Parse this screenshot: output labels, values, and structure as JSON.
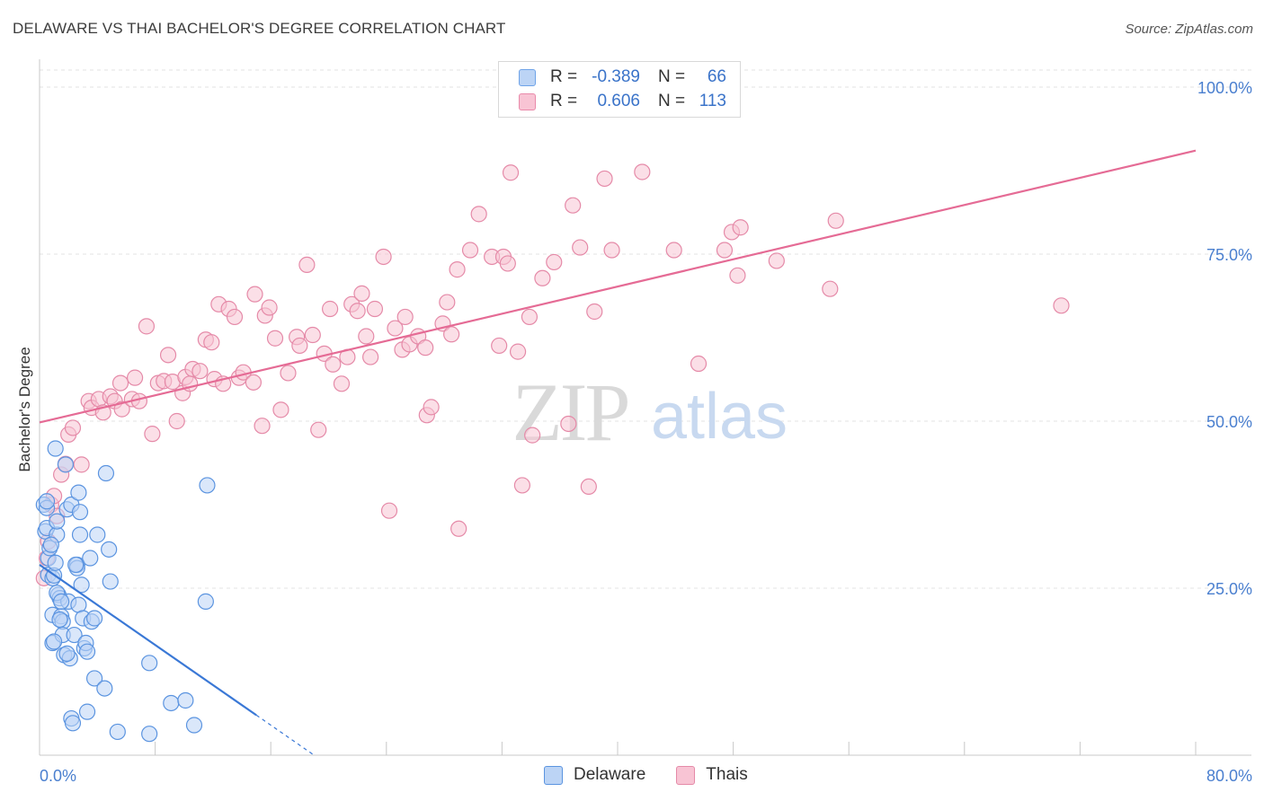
{
  "header": {
    "title": "DELAWARE VS THAI BACHELOR'S DEGREE CORRELATION CHART",
    "source": "Source: ZipAtlas.com"
  },
  "watermark": {
    "zip": "ZIP",
    "atlas": "atlas"
  },
  "legend": {
    "rows": [
      {
        "r_label": "R =",
        "r_value": "-0.389",
        "n_label": "N =",
        "n_value": "66",
        "color": "#6fa3e8",
        "fill": "#bcd4f5"
      },
      {
        "r_label": "R =",
        "r_value": "0.606",
        "n_label": "N =",
        "n_value": "113",
        "color": "#e98aaa",
        "fill": "#f8c4d4"
      }
    ]
  },
  "bottom_legend": {
    "items": [
      "Delaware",
      "Thais"
    ]
  },
  "colors": {
    "blue_stroke": "#5b94e0",
    "blue_fill": "#bcd4f5",
    "blue_line": "#3a78d6",
    "pink_stroke": "#e58aa8",
    "pink_fill": "#f8c4d4",
    "pink_line": "#e56b95",
    "grid": "#e3e3e3",
    "axis_label": "#4a7fcf"
  },
  "chart_data": {
    "type": "scatter",
    "title": "DELAWARE VS THAI BACHELOR'S DEGREE CORRELATION CHART",
    "xlabel": "",
    "ylabel": "Bachelor's Degree",
    "xlim": [
      0,
      80
    ],
    "ylim": [
      0,
      100
    ],
    "x_tick_labels": [
      "0.0%",
      "80.0%"
    ],
    "y_ticks": [
      25,
      50,
      75,
      100
    ],
    "y_tick_labels": [
      "25.0%",
      "50.0%",
      "75.0%",
      "100.0%"
    ],
    "grid": true,
    "legend_position": "top-center",
    "series": [
      {
        "name": "Delaware",
        "r": -0.389,
        "n": 66,
        "trend": {
          "x0": 0,
          "y0": 28.5,
          "x1": 15,
          "y1": 6.0,
          "dashed_to_x": 19
        },
        "points": [
          [
            0.3,
            37.5
          ],
          [
            0.5,
            37.0
          ],
          [
            0.4,
            33.5
          ],
          [
            0.5,
            34.0
          ],
          [
            0.6,
            29.5
          ],
          [
            0.7,
            31.0
          ],
          [
            0.6,
            27.0
          ],
          [
            0.9,
            26.5
          ],
          [
            1.0,
            26.9
          ],
          [
            0.9,
            21.0
          ],
          [
            0.9,
            16.8
          ],
          [
            1.1,
            28.8
          ],
          [
            1.2,
            33.0
          ],
          [
            1.2,
            35.0
          ],
          [
            1.1,
            45.9
          ],
          [
            1.3,
            24.0
          ],
          [
            1.4,
            23.5
          ],
          [
            1.5,
            20.8
          ],
          [
            1.6,
            20.0
          ],
          [
            1.6,
            18.0
          ],
          [
            1.7,
            15.0
          ],
          [
            1.8,
            43.5
          ],
          [
            1.9,
            36.8
          ],
          [
            2.0,
            23.0
          ],
          [
            2.1,
            14.5
          ],
          [
            2.2,
            5.5
          ],
          [
            2.3,
            4.8
          ],
          [
            2.2,
            37.5
          ],
          [
            2.6,
            28.5
          ],
          [
            2.4,
            18.0
          ],
          [
            2.6,
            28.0
          ],
          [
            2.7,
            22.5
          ],
          [
            2.7,
            39.3
          ],
          [
            2.8,
            36.4
          ],
          [
            2.8,
            33.0
          ],
          [
            2.9,
            25.5
          ],
          [
            3.0,
            20.5
          ],
          [
            3.1,
            16.0
          ],
          [
            3.2,
            16.8
          ],
          [
            3.3,
            15.5
          ],
          [
            3.3,
            6.5
          ],
          [
            3.5,
            29.5
          ],
          [
            3.6,
            20.0
          ],
          [
            3.8,
            20.5
          ],
          [
            3.8,
            11.5
          ],
          [
            4.0,
            33.0
          ],
          [
            4.5,
            10.0
          ],
          [
            4.6,
            42.2
          ],
          [
            4.8,
            30.8
          ],
          [
            4.9,
            26.0
          ],
          [
            5.4,
            3.5
          ],
          [
            7.6,
            13.8
          ],
          [
            7.6,
            3.2
          ],
          [
            9.1,
            7.8
          ],
          [
            10.1,
            8.2
          ],
          [
            10.7,
            4.5
          ],
          [
            11.5,
            23.0
          ],
          [
            11.6,
            40.4
          ],
          [
            1.0,
            17.0
          ],
          [
            1.9,
            15.2
          ],
          [
            1.4,
            20.3
          ],
          [
            0.8,
            31.5
          ],
          [
            1.2,
            24.3
          ],
          [
            2.5,
            28.5
          ],
          [
            0.5,
            38.0
          ],
          [
            1.5,
            23.0
          ]
        ]
      },
      {
        "name": "Thais",
        "r": 0.606,
        "n": 113,
        "trend": {
          "x0": 0,
          "y0": 49.8,
          "x1": 80,
          "y1": 90.5
        },
        "points": [
          [
            0.3,
            26.5
          ],
          [
            0.5,
            29.5
          ],
          [
            0.6,
            32.0
          ],
          [
            0.8,
            37.5
          ],
          [
            1.0,
            38.8
          ],
          [
            1.2,
            35.8
          ],
          [
            1.5,
            42.0
          ],
          [
            1.8,
            43.6
          ],
          [
            2.0,
            48.0
          ],
          [
            2.3,
            49.0
          ],
          [
            2.9,
            43.5
          ],
          [
            3.4,
            53.0
          ],
          [
            3.6,
            52.0
          ],
          [
            4.1,
            53.3
          ],
          [
            4.4,
            51.3
          ],
          [
            4.9,
            53.7
          ],
          [
            5.2,
            53.0
          ],
          [
            5.6,
            55.7
          ],
          [
            5.7,
            51.8
          ],
          [
            6.4,
            53.3
          ],
          [
            6.6,
            56.5
          ],
          [
            6.9,
            53.0
          ],
          [
            7.4,
            64.2
          ],
          [
            7.8,
            48.1
          ],
          [
            8.2,
            55.7
          ],
          [
            8.6,
            56.0
          ],
          [
            8.9,
            59.9
          ],
          [
            9.2,
            55.9
          ],
          [
            9.5,
            50.0
          ],
          [
            9.9,
            54.2
          ],
          [
            10.1,
            56.6
          ],
          [
            10.4,
            55.6
          ],
          [
            10.6,
            57.8
          ],
          [
            11.1,
            57.5
          ],
          [
            11.5,
            62.2
          ],
          [
            11.9,
            61.8
          ],
          [
            12.1,
            56.3
          ],
          [
            12.4,
            67.5
          ],
          [
            12.7,
            55.6
          ],
          [
            13.1,
            66.8
          ],
          [
            13.5,
            65.6
          ],
          [
            13.8,
            56.5
          ],
          [
            14.1,
            57.3
          ],
          [
            14.8,
            55.8
          ],
          [
            14.9,
            69.0
          ],
          [
            15.4,
            49.3
          ],
          [
            15.6,
            65.8
          ],
          [
            15.9,
            67.0
          ],
          [
            16.3,
            62.4
          ],
          [
            16.7,
            51.7
          ],
          [
            17.2,
            57.2
          ],
          [
            17.8,
            62.6
          ],
          [
            18.0,
            61.3
          ],
          [
            18.5,
            73.4
          ],
          [
            18.9,
            62.9
          ],
          [
            19.3,
            48.7
          ],
          [
            19.7,
            60.1
          ],
          [
            20.1,
            66.8
          ],
          [
            20.3,
            58.5
          ],
          [
            20.9,
            55.6
          ],
          [
            21.3,
            59.6
          ],
          [
            21.6,
            67.5
          ],
          [
            22.0,
            66.5
          ],
          [
            22.3,
            69.1
          ],
          [
            22.6,
            62.7
          ],
          [
            22.9,
            59.6
          ],
          [
            23.2,
            66.8
          ],
          [
            23.8,
            74.6
          ],
          [
            24.2,
            36.6
          ],
          [
            24.6,
            63.9
          ],
          [
            25.1,
            60.7
          ],
          [
            25.3,
            65.6
          ],
          [
            25.6,
            61.5
          ],
          [
            26.2,
            62.7
          ],
          [
            26.8,
            50.9
          ],
          [
            27.1,
            52.1
          ],
          [
            27.9,
            64.6
          ],
          [
            28.2,
            67.8
          ],
          [
            28.5,
            63.0
          ],
          [
            28.9,
            72.7
          ],
          [
            29.0,
            33.9
          ],
          [
            29.8,
            75.6
          ],
          [
            30.4,
            81.0
          ],
          [
            31.3,
            74.6
          ],
          [
            31.8,
            61.3
          ],
          [
            32.1,
            74.6
          ],
          [
            32.4,
            73.6
          ],
          [
            32.6,
            87.2
          ],
          [
            33.1,
            60.4
          ],
          [
            33.4,
            40.4
          ],
          [
            33.9,
            65.6
          ],
          [
            34.1,
            47.9
          ],
          [
            34.8,
            71.4
          ],
          [
            35.6,
            73.8
          ],
          [
            36.6,
            49.6
          ],
          [
            36.9,
            82.3
          ],
          [
            37.4,
            76.0
          ],
          [
            38.0,
            40.2
          ],
          [
            38.4,
            66.4
          ],
          [
            39.1,
            86.3
          ],
          [
            39.6,
            75.6
          ],
          [
            41.7,
            87.3
          ],
          [
            43.9,
            75.6
          ],
          [
            45.6,
            58.6
          ],
          [
            47.4,
            75.6
          ],
          [
            47.9,
            78.3
          ],
          [
            48.3,
            71.8
          ],
          [
            48.5,
            79.0
          ],
          [
            51.0,
            74.0
          ],
          [
            54.7,
            69.8
          ],
          [
            55.1,
            80.0
          ],
          [
            70.7,
            67.3
          ],
          [
            26.7,
            61.0
          ]
        ]
      }
    ]
  }
}
